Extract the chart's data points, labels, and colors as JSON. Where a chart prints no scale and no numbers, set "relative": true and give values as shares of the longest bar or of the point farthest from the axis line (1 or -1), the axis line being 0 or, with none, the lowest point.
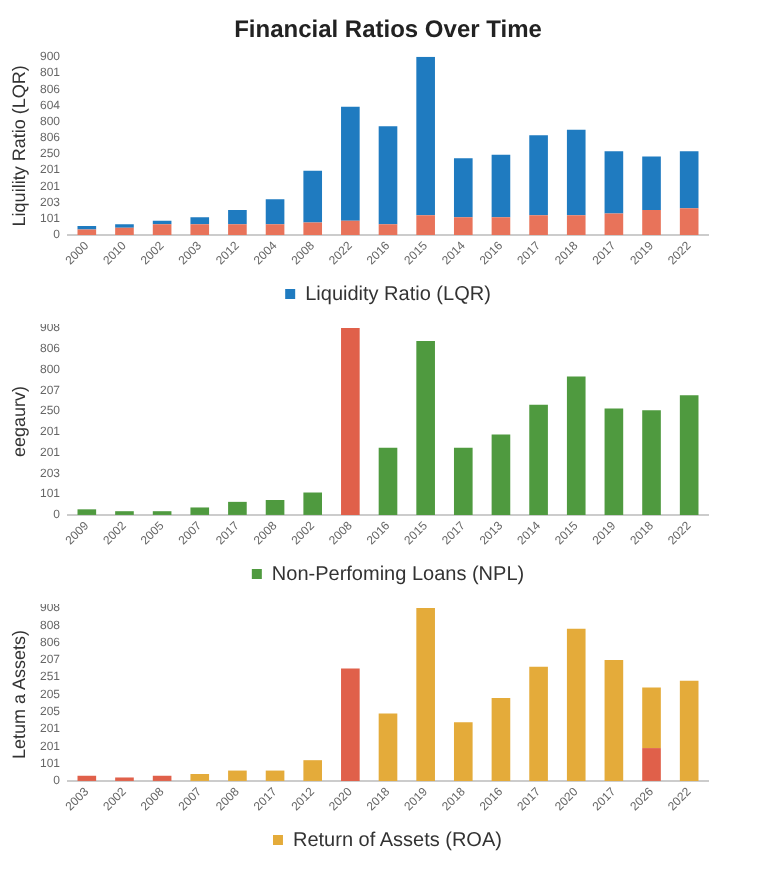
{
  "chart_data": [
    {
      "type": "bar",
      "title": "Financial Ratios Over Time",
      "ylabel": "Liquility Ratio (LQR)",
      "stacked": true,
      "legend": "bottom",
      "grid": false,
      "relative": true,
      "annotations": [
        "0",
        "101",
        "203",
        "201",
        "201",
        "250",
        "806",
        "800",
        "604",
        "806",
        "801",
        "900"
      ],
      "categories": [
        "2000",
        "2010",
        "2002",
        "2003",
        "2012",
        "2004",
        "2008",
        "2022",
        "2016",
        "2015",
        "2014",
        "2016",
        "2017",
        "2018",
        "2017",
        "2019",
        "2022"
      ],
      "series": [
        {
          "color": "#e8735a",
          "values": [
            0.03,
            0.04,
            0.06,
            0.06,
            0.06,
            0.06,
            0.07,
            0.08,
            0.06,
            0.11,
            0.1,
            0.1,
            0.11,
            0.11,
            0.12,
            0.14,
            0.15
          ]
        },
        {
          "name": "Liquidity Ratio (LQR)",
          "color": "#1f7bc0",
          "values": [
            0.02,
            0.02,
            0.02,
            0.04,
            0.08,
            0.14,
            0.29,
            0.64,
            0.55,
            0.89,
            0.33,
            0.35,
            0.45,
            0.48,
            0.35,
            0.3,
            0.32
          ]
        }
      ]
    },
    {
      "type": "bar",
      "ylabel": "eegaurv)",
      "legend": "bottom",
      "grid": false,
      "relative": true,
      "annotations": [
        "0",
        "101",
        "203",
        "201",
        "201",
        "250",
        "207",
        "800",
        "806",
        "908"
      ],
      "categories": [
        "2009",
        "2002",
        "2005",
        "2007",
        "2017",
        "2008",
        "2002",
        "2008",
        "2016",
        "2015",
        "2017",
        "2013",
        "2014",
        "2015",
        "2019",
        "2018",
        "2022"
      ],
      "series": [
        {
          "name": "Non-Perfoming Loans (NPL)",
          "color": "#4f9a3f",
          "colors": [
            "#4f9a3f",
            "#4f9a3f",
            "#4f9a3f",
            "#4f9a3f",
            "#4f9a3f",
            "#4f9a3f",
            "#4f9a3f",
            "#e0604a",
            "#4f9a3f",
            "#4f9a3f",
            "#4f9a3f",
            "#4f9a3f",
            "#4f9a3f",
            "#4f9a3f",
            "#4f9a3f",
            "#4f9a3f",
            "#4f9a3f"
          ],
          "values": [
            0.03,
            0.02,
            0.02,
            0.04,
            0.07,
            0.08,
            0.12,
            1,
            0.36,
            0.93,
            0.36,
            0.43,
            0.59,
            0.74,
            0.57,
            0.56,
            0.64
          ]
        }
      ]
    },
    {
      "type": "bar",
      "ylabel": "Letum a Assets)",
      "stacked": true,
      "legend": "bottom",
      "grid": false,
      "relative": true,
      "annotations": [
        "0",
        "101",
        "201",
        "201",
        "205",
        "205",
        "251",
        "207",
        "806",
        "808",
        "908"
      ],
      "categories": [
        "2003",
        "2002",
        "2008",
        "2007",
        "2008",
        "2017",
        "2012",
        "2020",
        "2018",
        "2019",
        "2018",
        "2016",
        "2017",
        "2020",
        "2017",
        "2026",
        "2022"
      ],
      "series": [
        {
          "color": "#e0604a",
          "values": [
            0.03,
            0.02,
            0.03,
            null,
            null,
            null,
            null,
            0.65,
            null,
            null,
            null,
            null,
            null,
            null,
            null,
            0.19,
            null
          ]
        },
        {
          "name": "Return of Assets (ROA)",
          "color": "#e4ab3a",
          "values": [
            null,
            null,
            null,
            0.04,
            0.06,
            0.06,
            0.12,
            null,
            0.39,
            1,
            0.34,
            0.48,
            0.66,
            0.88,
            0.7,
            0.35,
            0.58
          ]
        }
      ]
    }
  ]
}
